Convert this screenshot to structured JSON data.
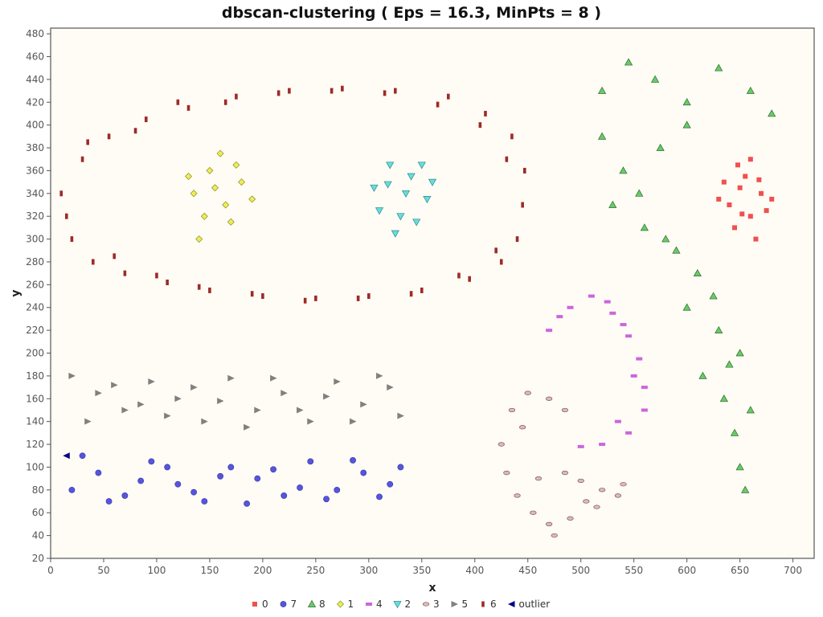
{
  "chart_data": {
    "type": "scatter",
    "title": "dbscan-clustering ( Eps = 16.3, MinPts = 8 )",
    "xlabel": "x",
    "ylabel": "y",
    "xlim": [
      0,
      720
    ],
    "ylim": [
      20,
      485
    ],
    "x_ticks": [
      "0",
      "50",
      "100",
      "150",
      "200",
      "250",
      "300",
      "350",
      "400",
      "450",
      "500",
      "550",
      "600",
      "650",
      "700"
    ],
    "y_ticks": [
      "20",
      "40",
      "60",
      "80",
      "100",
      "120",
      "140",
      "160",
      "180",
      "200",
      "220",
      "240",
      "260",
      "280",
      "300",
      "320",
      "340",
      "360",
      "380",
      "400",
      "420",
      "440",
      "460",
      "480"
    ],
    "grid": false,
    "background": "#fffcf5",
    "legend_position": "bottom",
    "series": [
      {
        "name": "0",
        "marker": "square",
        "color": "#f05050",
        "points": [
          [
            640,
            330
          ],
          [
            650,
            345
          ],
          [
            660,
            320
          ],
          [
            655,
            355
          ],
          [
            670,
            340
          ],
          [
            645,
            310
          ],
          [
            665,
            300
          ],
          [
            635,
            350
          ],
          [
            675,
            325
          ],
          [
            648,
            365
          ],
          [
            660,
            370
          ],
          [
            680,
            335
          ],
          [
            630,
            335
          ],
          [
            652,
            322
          ],
          [
            668,
            352
          ]
        ]
      },
      {
        "name": "7",
        "marker": "circle",
        "color": "#5555dd",
        "points": [
          [
            20,
            80
          ],
          [
            45,
            95
          ],
          [
            70,
            75
          ],
          [
            95,
            105
          ],
          [
            120,
            85
          ],
          [
            145,
            70
          ],
          [
            170,
            100
          ],
          [
            195,
            90
          ],
          [
            220,
            75
          ],
          [
            245,
            105
          ],
          [
            270,
            80
          ],
          [
            295,
            95
          ],
          [
            320,
            85
          ],
          [
            30,
            110
          ],
          [
            55,
            70
          ],
          [
            85,
            88
          ],
          [
            110,
            100
          ],
          [
            135,
            78
          ],
          [
            160,
            92
          ],
          [
            185,
            68
          ],
          [
            210,
            98
          ],
          [
            235,
            82
          ],
          [
            260,
            72
          ],
          [
            285,
            106
          ],
          [
            310,
            74
          ],
          [
            330,
            100
          ]
        ]
      },
      {
        "name": "8",
        "marker": "triangle-up",
        "color": "#66cc66",
        "points": [
          [
            520,
            430
          ],
          [
            545,
            455
          ],
          [
            570,
            440
          ],
          [
            600,
            420
          ],
          [
            630,
            450
          ],
          [
            660,
            430
          ],
          [
            680,
            410
          ],
          [
            520,
            390
          ],
          [
            540,
            360
          ],
          [
            530,
            330
          ],
          [
            560,
            310
          ],
          [
            590,
            290
          ],
          [
            610,
            270
          ],
          [
            625,
            250
          ],
          [
            630,
            220
          ],
          [
            640,
            190
          ],
          [
            635,
            160
          ],
          [
            645,
            130
          ],
          [
            650,
            100
          ],
          [
            655,
            80
          ],
          [
            615,
            180
          ],
          [
            660,
            150
          ],
          [
            600,
            400
          ],
          [
            575,
            380
          ],
          [
            555,
            340
          ],
          [
            580,
            300
          ],
          [
            600,
            240
          ],
          [
            650,
            200
          ]
        ]
      },
      {
        "name": "1",
        "marker": "diamond",
        "color": "#eeee55",
        "points": [
          [
            135,
            340
          ],
          [
            150,
            360
          ],
          [
            165,
            330
          ],
          [
            180,
            350
          ],
          [
            170,
            315
          ],
          [
            145,
            320
          ],
          [
            160,
            375
          ],
          [
            190,
            335
          ],
          [
            140,
            300
          ],
          [
            175,
            365
          ],
          [
            155,
            345
          ],
          [
            130,
            355
          ]
        ]
      },
      {
        "name": "4",
        "marker": "rect",
        "color": "#cc66dd",
        "points": [
          [
            470,
            220
          ],
          [
            490,
            240
          ],
          [
            510,
            250
          ],
          [
            530,
            235
          ],
          [
            545,
            215
          ],
          [
            555,
            195
          ],
          [
            560,
            170
          ],
          [
            560,
            150
          ],
          [
            545,
            130
          ],
          [
            520,
            120
          ],
          [
            500,
            118
          ],
          [
            480,
            232
          ],
          [
            540,
            225
          ],
          [
            525,
            245
          ],
          [
            550,
            180
          ],
          [
            535,
            140
          ]
        ]
      },
      {
        "name": "2",
        "marker": "triangle-down",
        "color": "#66dddd",
        "points": [
          [
            305,
            345
          ],
          [
            320,
            365
          ],
          [
            340,
            355
          ],
          [
            355,
            335
          ],
          [
            345,
            315
          ],
          [
            325,
            305
          ],
          [
            310,
            325
          ],
          [
            335,
            340
          ],
          [
            350,
            365
          ],
          [
            330,
            320
          ],
          [
            318,
            348
          ],
          [
            360,
            350
          ]
        ]
      },
      {
        "name": "3",
        "marker": "ellipse",
        "color": "#e0b8b8",
        "points": [
          [
            425,
            120
          ],
          [
            435,
            150
          ],
          [
            450,
            165
          ],
          [
            470,
            160
          ],
          [
            485,
            150
          ],
          [
            430,
            95
          ],
          [
            440,
            75
          ],
          [
            455,
            60
          ],
          [
            470,
            50
          ],
          [
            490,
            55
          ],
          [
            505,
            70
          ],
          [
            520,
            80
          ],
          [
            535,
            75
          ],
          [
            540,
            85
          ],
          [
            460,
            90
          ],
          [
            485,
            95
          ],
          [
            500,
            88
          ],
          [
            515,
            65
          ],
          [
            445,
            135
          ],
          [
            475,
            40
          ]
        ]
      },
      {
        "name": "5",
        "marker": "triangle-right",
        "color": "#808080",
        "points": [
          [
            20,
            180
          ],
          [
            45,
            165
          ],
          [
            70,
            150
          ],
          [
            95,
            175
          ],
          [
            120,
            160
          ],
          [
            145,
            140
          ],
          [
            170,
            178
          ],
          [
            195,
            150
          ],
          [
            220,
            165
          ],
          [
            245,
            140
          ],
          [
            270,
            175
          ],
          [
            295,
            155
          ],
          [
            320,
            170
          ],
          [
            330,
            145
          ],
          [
            35,
            140
          ],
          [
            60,
            172
          ],
          [
            85,
            155
          ],
          [
            110,
            145
          ],
          [
            135,
            170
          ],
          [
            160,
            158
          ],
          [
            185,
            135
          ],
          [
            210,
            178
          ],
          [
            235,
            150
          ],
          [
            260,
            162
          ],
          [
            285,
            140
          ],
          [
            310,
            180
          ]
        ]
      },
      {
        "name": "6",
        "marker": "bar",
        "color": "#9e2a2a",
        "points": [
          [
            10,
            340
          ],
          [
            20,
            300
          ],
          [
            30,
            370
          ],
          [
            40,
            280
          ],
          [
            55,
            390
          ],
          [
            70,
            270
          ],
          [
            90,
            405
          ],
          [
            110,
            262
          ],
          [
            130,
            415
          ],
          [
            150,
            255
          ],
          [
            175,
            425
          ],
          [
            200,
            250
          ],
          [
            225,
            430
          ],
          [
            250,
            248
          ],
          [
            275,
            432
          ],
          [
            300,
            250
          ],
          [
            325,
            430
          ],
          [
            350,
            255
          ],
          [
            375,
            425
          ],
          [
            395,
            265
          ],
          [
            410,
            410
          ],
          [
            425,
            280
          ],
          [
            435,
            390
          ],
          [
            440,
            300
          ],
          [
            447,
            360
          ],
          [
            445,
            330
          ],
          [
            15,
            320
          ],
          [
            35,
            385
          ],
          [
            60,
            285
          ],
          [
            80,
            395
          ],
          [
            100,
            268
          ],
          [
            120,
            420
          ],
          [
            140,
            258
          ],
          [
            165,
            420
          ],
          [
            190,
            252
          ],
          [
            215,
            428
          ],
          [
            240,
            246
          ],
          [
            265,
            430
          ],
          [
            290,
            248
          ],
          [
            315,
            428
          ],
          [
            340,
            252
          ],
          [
            365,
            418
          ],
          [
            385,
            268
          ],
          [
            405,
            400
          ],
          [
            420,
            290
          ],
          [
            430,
            370
          ]
        ]
      },
      {
        "name": "outlier",
        "marker": "triangle-left",
        "color": "#000088",
        "points": [
          [
            15,
            110
          ]
        ]
      }
    ]
  }
}
